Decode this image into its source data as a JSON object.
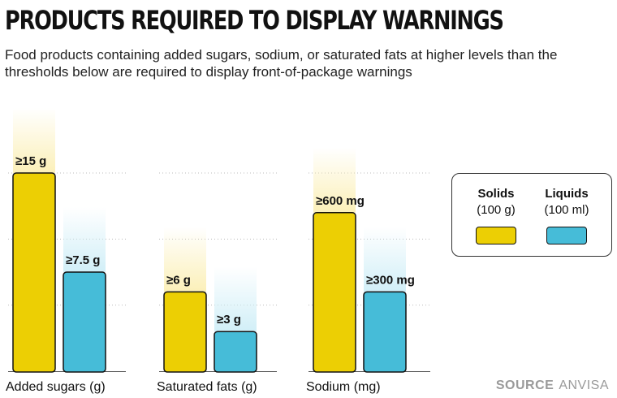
{
  "title": "PRODUCTS REQUIRED TO DISPLAY WARNINGS",
  "subtitle": "Food products containing added sugars, sodium, or saturated fats at higher levels than the thresholds below are required to display front-of-package warnings",
  "legend": {
    "solids_label": "Solids",
    "solids_sub": "(100 g)",
    "liquids_label": "Liquids",
    "liquids_sub": "(100 ml)"
  },
  "source": {
    "key": "SOURCE",
    "value": "ANVISA"
  },
  "colors": {
    "solids": "#eccf04",
    "liquids": "#46bcd8",
    "grid": "#bbbbbb",
    "glow_solids": "#fbefb5",
    "glow_liquids": "#cfeef7"
  },
  "chart_data": [
    {
      "type": "bar",
      "category": "Added sugars (g)",
      "series": [
        {
          "name": "Solids",
          "value": 15,
          "label": "≥15 g"
        },
        {
          "name": "Liquids",
          "value": 7.5,
          "label": "≥7.5 g"
        }
      ],
      "ylim": [
        0,
        15
      ]
    },
    {
      "type": "bar",
      "category": "Saturated fats (g)",
      "series": [
        {
          "name": "Solids",
          "value": 6,
          "label": "≥6 g"
        },
        {
          "name": "Liquids",
          "value": 3,
          "label": "≥3 g"
        }
      ],
      "ylim": [
        0,
        15
      ]
    },
    {
      "type": "bar",
      "category": "Sodium (mg)",
      "series": [
        {
          "name": "Solids",
          "value": 600,
          "label": "≥600 mg"
        },
        {
          "name": "Liquids",
          "value": 300,
          "label": "≥300 mg"
        }
      ],
      "ylim": [
        0,
        750
      ]
    }
  ]
}
